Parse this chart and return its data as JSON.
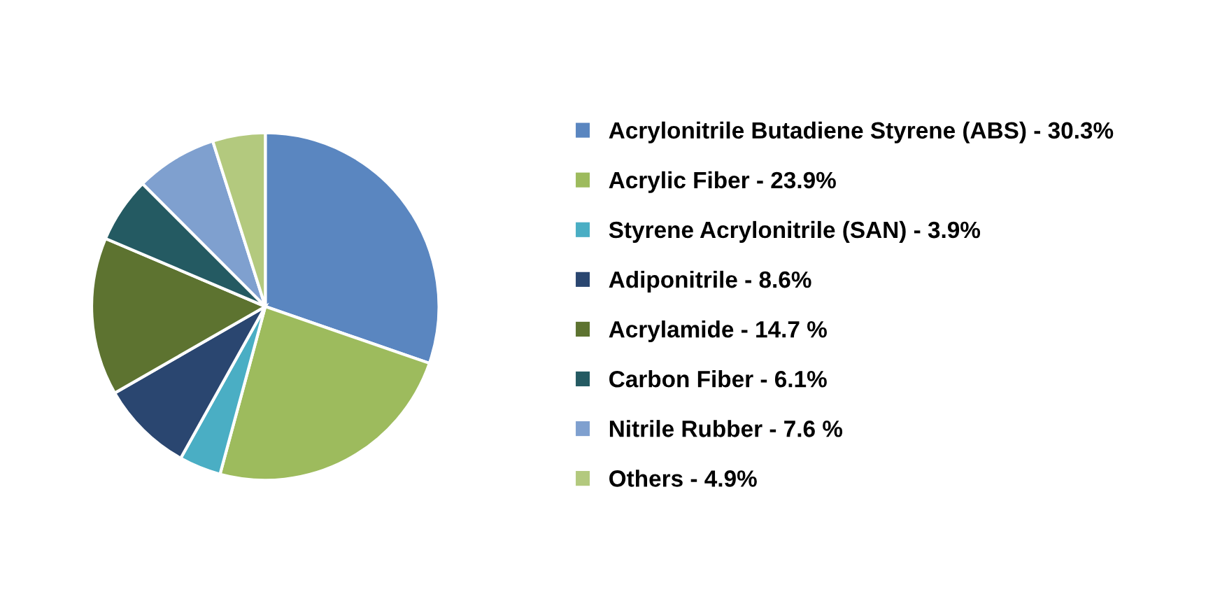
{
  "chart_data": {
    "type": "pie",
    "categories": [
      "Acrylonitrile Butadiene Styrene (ABS) - 30.3%",
      "Acrylic Fiber - 23.9%",
      "Styrene Acrylonitrile (SAN) - 3.9%",
      "Adiponitrile - 8.6%",
      "Acrylamide - 14.7 %",
      "Carbon Fiber - 6.1%",
      "Nitrile Rubber - 7.6 %",
      "Others - 4.9%"
    ],
    "values": [
      30.3,
      23.9,
      3.9,
      8.6,
      14.7,
      6.1,
      7.6,
      4.9
    ],
    "colors": [
      "#5a86c0",
      "#9dbb5d",
      "#4aaec4",
      "#2a4670",
      "#5d7330",
      "#245a62",
      "#7fa0cf",
      "#b3c97e"
    ],
    "legend": "right"
  }
}
